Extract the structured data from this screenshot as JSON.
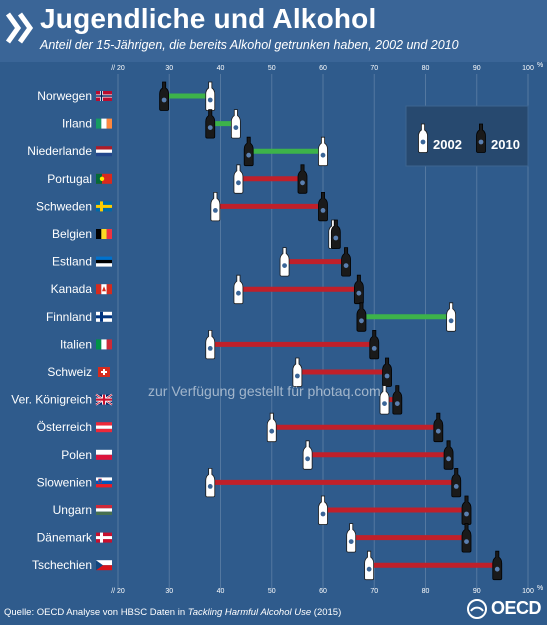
{
  "header": {
    "title": "Jugendliche und Alkohol",
    "subtitle": "Anteil der 15-Jährigen, die bereits Alkohol getrunken haben, 2002 und 2010"
  },
  "footer": {
    "source_prefix": "Quelle: OECD Analyse von HBSC Daten in ",
    "source_title": "Tackling Harmful Alcohol Use",
    "source_suffix": " (2015)",
    "logo_text": "OECD"
  },
  "watermark": "zur Verfügung gestellt für photaq.com",
  "colors": {
    "background": "#2f5b8c",
    "header": "#3a6597",
    "increase": "#c0202a",
    "decrease": "#3db34a",
    "bottle_2002": "#ffffff",
    "bottle_2010": "#1a1a1a"
  },
  "chart_data": {
    "type": "dumbbell",
    "title": "Jugendliche und Alkohol",
    "xlim": [
      20,
      100
    ],
    "x_ticks": [
      "// 20",
      "30",
      "40",
      "50",
      "60",
      "70",
      "80",
      "90",
      "100"
    ],
    "x_unit": "%",
    "grid": true,
    "legend": {
      "position": "top-right",
      "entries": [
        "2002",
        "2010"
      ]
    },
    "series_names": [
      "2002",
      "2010"
    ],
    "rows": [
      {
        "country": "Norwegen",
        "v2002": 38,
        "v2010": 29
      },
      {
        "country": "Irland",
        "v2002": 43,
        "v2010": 38
      },
      {
        "country": "Niederlande",
        "v2002": 60,
        "v2010": 45.5
      },
      {
        "country": "Portugal",
        "v2002": 43.5,
        "v2010": 56
      },
      {
        "country": "Schweden",
        "v2002": 39,
        "v2010": 60
      },
      {
        "country": "Belgien",
        "v2002": 62,
        "v2010": 62.5
      },
      {
        "country": "Estland",
        "v2002": 52.5,
        "v2010": 64.5
      },
      {
        "country": "Kanada",
        "v2002": 43.5,
        "v2010": 67
      },
      {
        "country": "Finnland",
        "v2002": 85,
        "v2010": 67.5
      },
      {
        "country": "Italien",
        "v2002": 38,
        "v2010": 70
      },
      {
        "country": "Schweiz",
        "v2002": 55,
        "v2010": 72.5
      },
      {
        "country": "Ver. Königreich",
        "v2002": 72,
        "v2010": 74.5
      },
      {
        "country": "Österreich",
        "v2002": 50,
        "v2010": 82.5
      },
      {
        "country": "Polen",
        "v2002": 57,
        "v2010": 84.5
      },
      {
        "country": "Slowenien",
        "v2002": 38,
        "v2010": 86
      },
      {
        "country": "Ungarn",
        "v2002": 60,
        "v2010": 88
      },
      {
        "country": "Dänemark",
        "v2002": 65.5,
        "v2010": 88
      },
      {
        "country": "Tschechien",
        "v2002": 69,
        "v2010": 94
      }
    ]
  }
}
